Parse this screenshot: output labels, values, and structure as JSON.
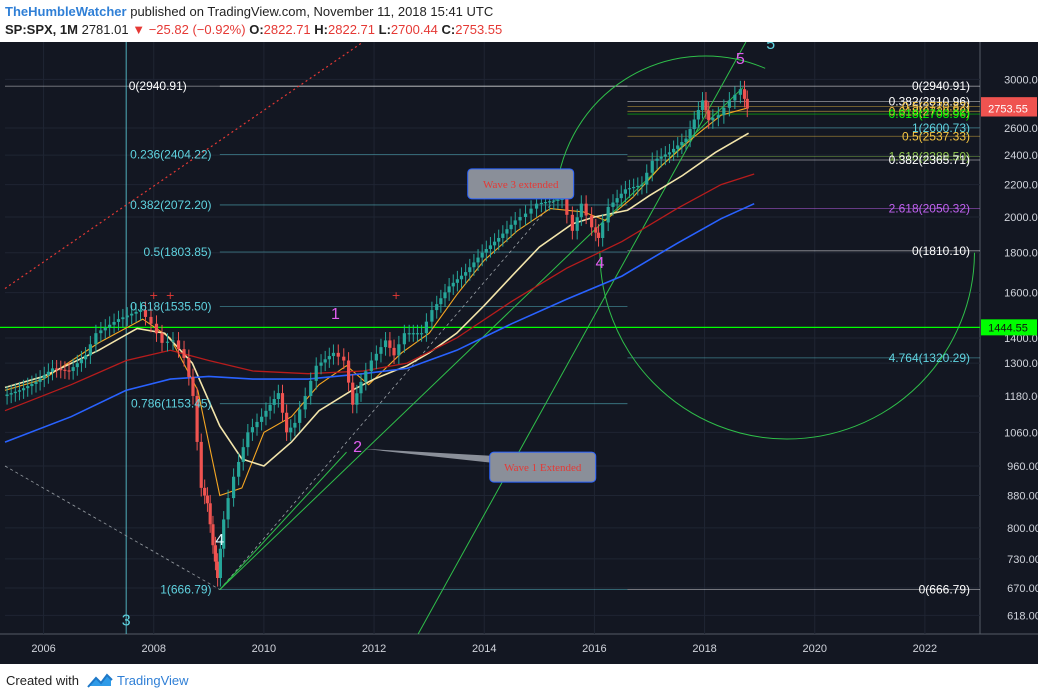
{
  "header": {
    "user": "TheHumbleWatcher",
    "published_text": "published on TradingView.com, November 11, 2018 15:41 UTC",
    "symbol": "SP:SPX, 1M",
    "last": "2781.01",
    "change": "−25.82 (−0.92%)",
    "open_label": "O:",
    "open": "2822.71",
    "high_label": "H:",
    "high": "2822.71",
    "low_label": "L:",
    "low": "2700.44",
    "close_label": "C:",
    "close": "2753.55"
  },
  "footer": {
    "created_with": "Created with",
    "brand": "TradingView"
  },
  "colors": {
    "background": "#131722",
    "up": "#26a69a",
    "down": "#ef5350",
    "fib_cyan": "#5fd3e0",
    "wave_label": "#e15ef0",
    "green_line": "#00ff00",
    "blue_ma": "#2962ff"
  },
  "chart_data": {
    "type": "line",
    "title": "",
    "xlabel": "",
    "ylabel": "",
    "scale": "log",
    "ylim": [
      585,
      3350
    ],
    "xlim": [
      2005.3,
      2023.0
    ],
    "x_ticks": [
      {
        "v": 2006,
        "t": "2006"
      },
      {
        "v": 2008,
        "t": "2008"
      },
      {
        "v": 2010,
        "t": "2010"
      },
      {
        "v": 2012,
        "t": "2012"
      },
      {
        "v": 2014,
        "t": "2014"
      },
      {
        "v": 2016,
        "t": "2016"
      },
      {
        "v": 2018,
        "t": "2018"
      },
      {
        "v": 2020,
        "t": "2020"
      },
      {
        "v": 2022,
        "t": "2022"
      }
    ],
    "y_ticks": [
      {
        "v": 3000,
        "t": "3000.00"
      },
      {
        "v": 2600,
        "t": "2600.00"
      },
      {
        "v": 2400,
        "t": "2400.00"
      },
      {
        "v": 2200,
        "t": "2200.00"
      },
      {
        "v": 2000,
        "t": "2000.00"
      },
      {
        "v": 1800,
        "t": "1800.00"
      },
      {
        "v": 1600,
        "t": "1600.00"
      },
      {
        "v": 1400,
        "t": "1400.00"
      },
      {
        "v": 1300,
        "t": "1300.00"
      },
      {
        "v": 1180,
        "t": "1180.00"
      },
      {
        "v": 1060,
        "t": "1060.00"
      },
      {
        "v": 960,
        "t": "960.00"
      },
      {
        "v": 880,
        "t": "880.00"
      },
      {
        "v": 800,
        "t": "800.00"
      },
      {
        "v": 730,
        "t": "730.00"
      },
      {
        "v": 670,
        "t": "670.00"
      },
      {
        "v": 618,
        "t": "618.00"
      }
    ],
    "price_tags": [
      {
        "v": 2781.01,
        "t": "2781.01",
        "color": "#ef5350"
      },
      {
        "v": 2753.55,
        "t": "2753.55",
        "color": "#ef5350"
      },
      {
        "v": 1444.55,
        "t": "1444.55",
        "color": "#00ff00"
      }
    ],
    "series": [
      {
        "key": "price",
        "values": [
          [
            2005.3,
            1180
          ],
          [
            2005.6,
            1200
          ],
          [
            2005.9,
            1230
          ],
          [
            2006.2,
            1280
          ],
          [
            2006.5,
            1270
          ],
          [
            2006.8,
            1330
          ],
          [
            2007.0,
            1420
          ],
          [
            2007.4,
            1480
          ],
          [
            2007.8,
            1520
          ],
          [
            2008.0,
            1460
          ],
          [
            2008.2,
            1380
          ],
          [
            2008.4,
            1390
          ],
          [
            2008.6,
            1320
          ],
          [
            2008.75,
            1180
          ],
          [
            2008.9,
            900
          ],
          [
            2009.0,
            860
          ],
          [
            2009.1,
            760
          ],
          [
            2009.18,
            690
          ],
          [
            2009.3,
            820
          ],
          [
            2009.5,
            930
          ],
          [
            2009.75,
            1060
          ],
          [
            2010.0,
            1110
          ],
          [
            2010.3,
            1190
          ],
          [
            2010.45,
            1060
          ],
          [
            2010.6,
            1090
          ],
          [
            2010.8,
            1180
          ],
          [
            2011.0,
            1290
          ],
          [
            2011.3,
            1340
          ],
          [
            2011.5,
            1310
          ],
          [
            2011.65,
            1150
          ],
          [
            2011.8,
            1230
          ],
          [
            2012.0,
            1310
          ],
          [
            2012.25,
            1390
          ],
          [
            2012.4,
            1330
          ],
          [
            2012.6,
            1420
          ],
          [
            2012.9,
            1420
          ],
          [
            2013.1,
            1520
          ],
          [
            2013.4,
            1630
          ],
          [
            2013.7,
            1700
          ],
          [
            2014.0,
            1800
          ],
          [
            2014.3,
            1880
          ],
          [
            2014.6,
            1980
          ],
          [
            2014.8,
            2020
          ],
          [
            2015.0,
            2080
          ],
          [
            2015.3,
            2100
          ],
          [
            2015.45,
            2110
          ],
          [
            2015.65,
            1920
          ],
          [
            2015.8,
            2080
          ],
          [
            2016.0,
            1940
          ],
          [
            2016.1,
            1880
          ],
          [
            2016.3,
            2060
          ],
          [
            2016.6,
            2170
          ],
          [
            2016.9,
            2200
          ],
          [
            2017.1,
            2360
          ],
          [
            2017.4,
            2420
          ],
          [
            2017.7,
            2520
          ],
          [
            2018.0,
            2820
          ],
          [
            2018.1,
            2660
          ],
          [
            2018.3,
            2700
          ],
          [
            2018.5,
            2820
          ],
          [
            2018.7,
            2915
          ],
          [
            2018.8,
            2753.55
          ]
        ]
      },
      {
        "key": "ma_fast",
        "values": [
          [
            2005.3,
            1200
          ],
          [
            2006.0,
            1240
          ],
          [
            2007.0,
            1380
          ],
          [
            2007.8,
            1480
          ],
          [
            2008.3,
            1400
          ],
          [
            2008.8,
            1200
          ],
          [
            2009.2,
            880
          ],
          [
            2009.6,
            900
          ],
          [
            2010.0,
            1060
          ],
          [
            2010.5,
            1110
          ],
          [
            2011.0,
            1220
          ],
          [
            2011.5,
            1290
          ],
          [
            2011.9,
            1220
          ],
          [
            2012.5,
            1340
          ],
          [
            2013.0,
            1420
          ],
          [
            2013.5,
            1590
          ],
          [
            2014.0,
            1760
          ],
          [
            2014.6,
            1920
          ],
          [
            2015.2,
            2050
          ],
          [
            2015.8,
            2030
          ],
          [
            2016.2,
            1980
          ],
          [
            2016.7,
            2120
          ],
          [
            2017.2,
            2320
          ],
          [
            2017.8,
            2530
          ],
          [
            2018.3,
            2700
          ],
          [
            2018.8,
            2760
          ]
        ]
      },
      {
        "key": "ma_step",
        "values": [
          [
            2005.3,
            1210
          ],
          [
            2006.0,
            1250
          ],
          [
            2007.0,
            1350
          ],
          [
            2007.7,
            1440
          ],
          [
            2008.2,
            1420
          ],
          [
            2008.7,
            1300
          ],
          [
            2009.2,
            1080
          ],
          [
            2009.6,
            980
          ],
          [
            2010.0,
            960
          ],
          [
            2010.5,
            1030
          ],
          [
            2011.0,
            1130
          ],
          [
            2011.6,
            1200
          ],
          [
            2012.0,
            1240
          ],
          [
            2012.6,
            1290
          ],
          [
            2013.0,
            1340
          ],
          [
            2013.5,
            1420
          ],
          [
            2014.0,
            1540
          ],
          [
            2014.5,
            1680
          ],
          [
            2015.0,
            1830
          ],
          [
            2015.6,
            1960
          ],
          [
            2016.0,
            2000
          ],
          [
            2016.6,
            2040
          ],
          [
            2017.0,
            2130
          ],
          [
            2017.6,
            2260
          ],
          [
            2018.2,
            2420
          ],
          [
            2018.8,
            2560
          ]
        ]
      },
      {
        "key": "ma_red",
        "values": [
          [
            2005.3,
            1130
          ],
          [
            2006.5,
            1220
          ],
          [
            2007.5,
            1310
          ],
          [
            2008.3,
            1350
          ],
          [
            2009.0,
            1310
          ],
          [
            2009.8,
            1270
          ],
          [
            2010.8,
            1260
          ],
          [
            2011.8,
            1270
          ],
          [
            2012.6,
            1300
          ],
          [
            2013.5,
            1400
          ],
          [
            2014.5,
            1560
          ],
          [
            2015.5,
            1720
          ],
          [
            2016.5,
            1860
          ],
          [
            2017.5,
            2050
          ],
          [
            2018.3,
            2200
          ],
          [
            2018.9,
            2270
          ]
        ]
      },
      {
        "key": "ma_blue",
        "values": [
          [
            2005.3,
            1030
          ],
          [
            2006.5,
            1110
          ],
          [
            2007.5,
            1200
          ],
          [
            2008.3,
            1240
          ],
          [
            2009.0,
            1250
          ],
          [
            2009.8,
            1240
          ],
          [
            2010.8,
            1240
          ],
          [
            2011.8,
            1260
          ],
          [
            2012.6,
            1280
          ],
          [
            2013.5,
            1350
          ],
          [
            2014.5,
            1460
          ],
          [
            2015.5,
            1570
          ],
          [
            2016.5,
            1680
          ],
          [
            2017.5,
            1850
          ],
          [
            2018.3,
            1990
          ],
          [
            2018.9,
            2080
          ]
        ]
      }
    ],
    "fib_levels_left": [
      {
        "v": 2940.91,
        "t": "0(2940.91)",
        "color": "#ffffff"
      },
      {
        "v": 2404.22,
        "t": "0.236(2404.22)",
        "color": "#5fd3e0"
      },
      {
        "v": 2072.2,
        "t": "0.382(2072.20)",
        "color": "#5fd3e0"
      },
      {
        "v": 1803.85,
        "t": "0.5(1803.85)",
        "color": "#5fd3e0"
      },
      {
        "v": 1535.5,
        "t": "0.618(1535.50)",
        "color": "#5fd3e0"
      },
      {
        "v": 1153.45,
        "t": "0.786(1153.45)",
        "color": "#5fd3e0"
      },
      {
        "v": 666.79,
        "t": "1(666.79)",
        "color": "#5fd3e0"
      }
    ],
    "fib_levels_right": [
      {
        "v": 2940.91,
        "t": "0(2940.91)",
        "color": "#ffffff"
      },
      {
        "v": 2810.96,
        "t": "0.382(2810.96)",
        "color": "#ffffff"
      },
      {
        "v": 2770.82,
        "t": "0.5(2770.82)",
        "color": "#f5c542"
      },
      {
        "v": 2730.82,
        "t": "0.618(2730.82)",
        "color": "#f5c542"
      },
      {
        "v": 2708.96,
        "t": "0.618(2708.96)",
        "color": "#00ff00"
      },
      {
        "v": 2600.73,
        "t": "1(2600.73)",
        "color": "#5fd3e0"
      },
      {
        "v": 2537.33,
        "t": "0.5(2537.33)",
        "color": "#f5c542"
      },
      {
        "v": 2389.5,
        "t": "1.618(2389.50)",
        "color": "#8bc34a"
      },
      {
        "v": 2365.71,
        "t": "0.382(2365.71)",
        "color": "#ffffff"
      },
      {
        "v": 2050.32,
        "t": "2.618(2050.32)",
        "color": "#c061f0"
      },
      {
        "v": 1810.1,
        "t": "0(1810.10)",
        "color": "#ffffff"
      },
      {
        "v": 1320.29,
        "t": "4.764(1320.29)",
        "color": "#5fd3e0"
      },
      {
        "v": 666.79,
        "t": "0(666.79)",
        "color": "#ffffff"
      }
    ],
    "wave_labels": [
      {
        "t": "1",
        "x": 2011.3,
        "y": 1480,
        "color": "#e15ef0"
      },
      {
        "t": "2",
        "x": 2011.7,
        "y": 1000,
        "color": "#e15ef0"
      },
      {
        "t": "3",
        "x": 2015.3,
        "y": 2230,
        "color": "#e15ef0"
      },
      {
        "t": "4",
        "x": 2016.1,
        "y": 1720,
        "color": "#e15ef0"
      },
      {
        "t": "5",
        "x": 2018.65,
        "y": 3140,
        "color": "#e15ef0"
      },
      {
        "t": "5",
        "x": 2019.2,
        "y": 3280,
        "color": "#5fd3e0"
      },
      {
        "t": "4",
        "x": 2009.2,
        "y": 760,
        "color": "#e0f7fa"
      },
      {
        "t": "3",
        "x": 2007.5,
        "y": 600,
        "color": "#5fd3e0"
      }
    ],
    "callouts": [
      {
        "t": "Wave 3 extended",
        "x": 2013.7,
        "y": 2305,
        "tip_x": 2015.3,
        "tip_y": 2120
      },
      {
        "t": "Wave 1 Extended",
        "x": 2014.1,
        "y": 1000,
        "tip_x": 2011.8,
        "tip_y": 1010
      }
    ]
  }
}
